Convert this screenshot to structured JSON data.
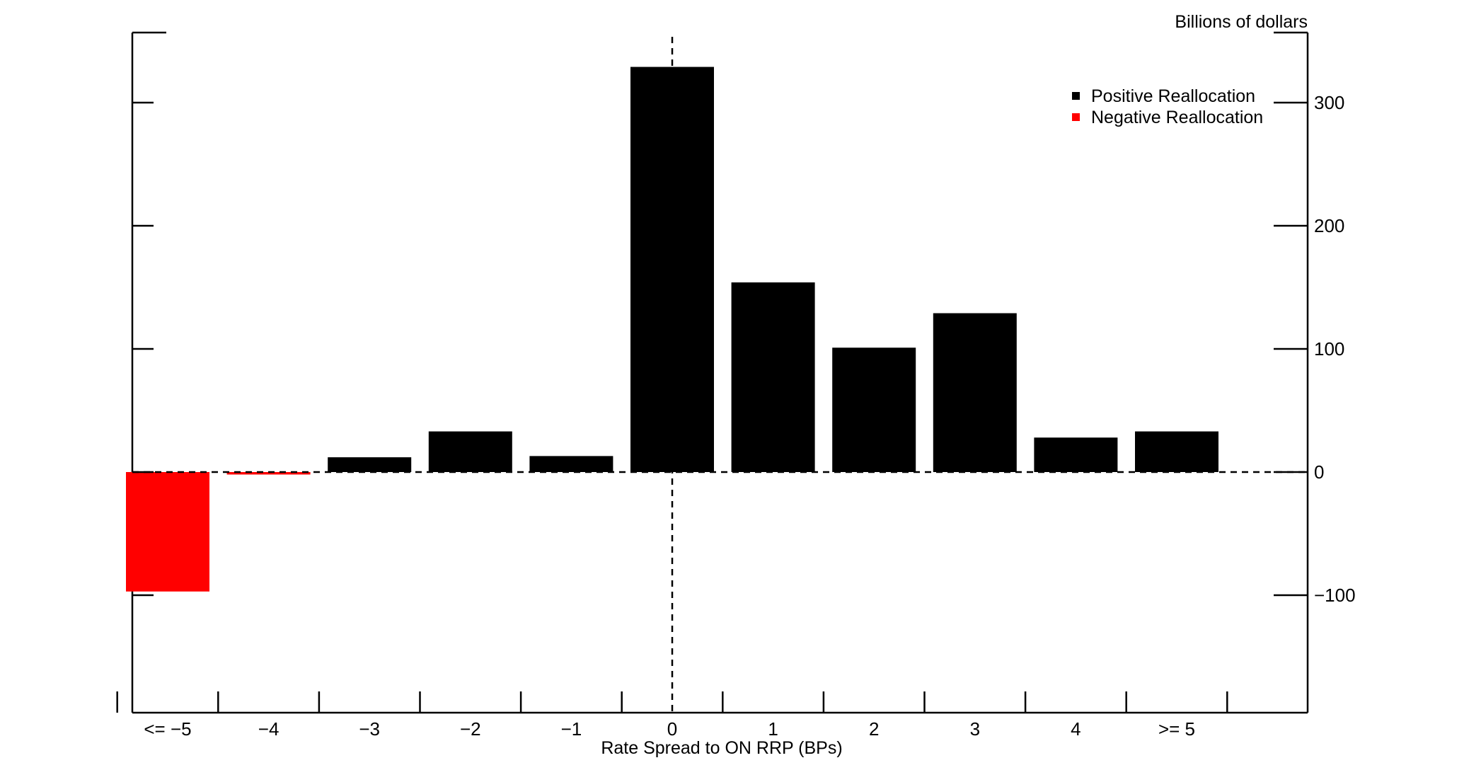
{
  "chart_data": {
    "type": "bar",
    "unit_label": "Billions of dollars",
    "xlabel": "Rate Spread to ON RRP (BPs)",
    "categories": [
      "<= −5",
      "−4",
      "−3",
      "−2",
      "−1",
      "0",
      "1",
      "2",
      "3",
      "4",
      ">= 5"
    ],
    "series": [
      {
        "name": "Positive Reallocation",
        "color": "#000000",
        "values": [
          null,
          null,
          12,
          33,
          13,
          329,
          154,
          101,
          129,
          28,
          33
        ]
      },
      {
        "name": "Negative Reallocation",
        "color": "#ff0000",
        "values": [
          -97,
          -2,
          null,
          null,
          null,
          null,
          null,
          null,
          null,
          null,
          null
        ]
      }
    ],
    "y_ticks": [
      -100,
      0,
      100,
      200,
      300
    ],
    "y_tick_labels": [
      "−100",
      "0",
      "100",
      "200",
      "300"
    ],
    "ylim": [
      -197,
      355
    ],
    "y_axis_side": "right",
    "reference_lines": {
      "horizontal_at": 0,
      "vertical_at_category": "0",
      "style": "dashed"
    },
    "legend_position": "top-right",
    "grid": false
  }
}
